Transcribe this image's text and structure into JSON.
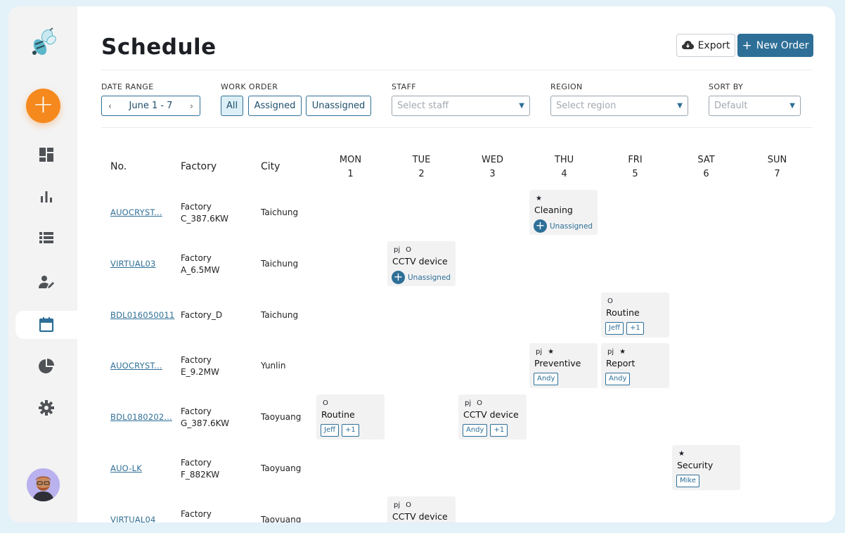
{
  "page": {
    "title": "Schedule",
    "export_label": "Export",
    "new_order_label": "New Order"
  },
  "filters": {
    "date_range_label": "DATE RANGE",
    "date_range_value": "June 1 - 7",
    "work_order_label": "WORK ORDER",
    "work_order_options": [
      "All",
      "Assigned",
      "Unassigned"
    ],
    "staff_label": "STAFF",
    "staff_placeholder": "Select staff",
    "region_label": "REGION",
    "region_placeholder": "Select region",
    "sort_label": "SORT BY",
    "sort_value": "Default"
  },
  "table": {
    "headers": {
      "no": "No.",
      "factory": "Factory",
      "city": "City"
    },
    "days": [
      {
        "name": "MON",
        "num": "1"
      },
      {
        "name": "TUE",
        "num": "2"
      },
      {
        "name": "WED",
        "num": "3"
      },
      {
        "name": "THU",
        "num": "4"
      },
      {
        "name": "FRI",
        "num": "5"
      },
      {
        "name": "SAT",
        "num": "6"
      },
      {
        "name": "SUN",
        "num": "7"
      }
    ],
    "rows": [
      {
        "no": "AUOCRYST...",
        "factory_l1": "Factory",
        "factory_l2": "C_387.6KW",
        "city": "Taichung"
      },
      {
        "no": "VIRTUAL03",
        "factory_l1": "Factory",
        "factory_l2": "A_6.5MW",
        "city": "Taichung"
      },
      {
        "no": "BDL016050011",
        "factory_l1": "Factory_D",
        "factory_l2": "",
        "city": "Taichung"
      },
      {
        "no": "AUOCRYST...",
        "factory_l1": "Factory",
        "factory_l2": "E_9.2MW",
        "city": "Yunlin"
      },
      {
        "no": "BDL0180202...",
        "factory_l1": "Factory",
        "factory_l2": "G_387.6KW",
        "city": "Taoyuang"
      },
      {
        "no": "AUO-LK",
        "factory_l1": "Factory",
        "factory_l2": "F_882KW",
        "city": "Taoyuang"
      },
      {
        "no": "VIRTUAL04",
        "factory_l1": "Factory",
        "factory_l2": "",
        "city": "Taoyuang"
      }
    ]
  },
  "cards": {
    "c1": {
      "icons": [
        "★"
      ],
      "title": "Cleaning",
      "unassigned": "Unassigned"
    },
    "c2": {
      "icons": [
        "pj",
        "O"
      ],
      "title": "CCTV device",
      "unassigned": "Unassigned"
    },
    "c3": {
      "icons": [
        "O"
      ],
      "title": "Routine",
      "chips": [
        "Jeff",
        "+1"
      ]
    },
    "c4": {
      "icons": [
        "pj",
        "★"
      ],
      "title": "Preventive",
      "chips": [
        "Andy"
      ]
    },
    "c5": {
      "icons": [
        "pj",
        "★"
      ],
      "title": "Report",
      "chips": [
        "Andy"
      ]
    },
    "c6": {
      "icons": [
        "O"
      ],
      "title": "Routine",
      "chips": [
        "Jeff",
        "+1"
      ]
    },
    "c7": {
      "icons": [
        "pj",
        "O"
      ],
      "title": "CCTV device",
      "chips": [
        "Andy",
        "+1"
      ]
    },
    "c8": {
      "icons": [
        "★"
      ],
      "title": "Security",
      "chips": [
        "Mike"
      ]
    },
    "c9": {
      "icons": [
        "pj",
        "O"
      ],
      "title": "CCTV device"
    }
  },
  "colors": {
    "accent": "#2e6f97",
    "add_button": "#f5891e",
    "card_bg": "#f2f2f3",
    "sidebar_bg": "#f3f3f4",
    "page_bg": "#e3f1f8"
  }
}
